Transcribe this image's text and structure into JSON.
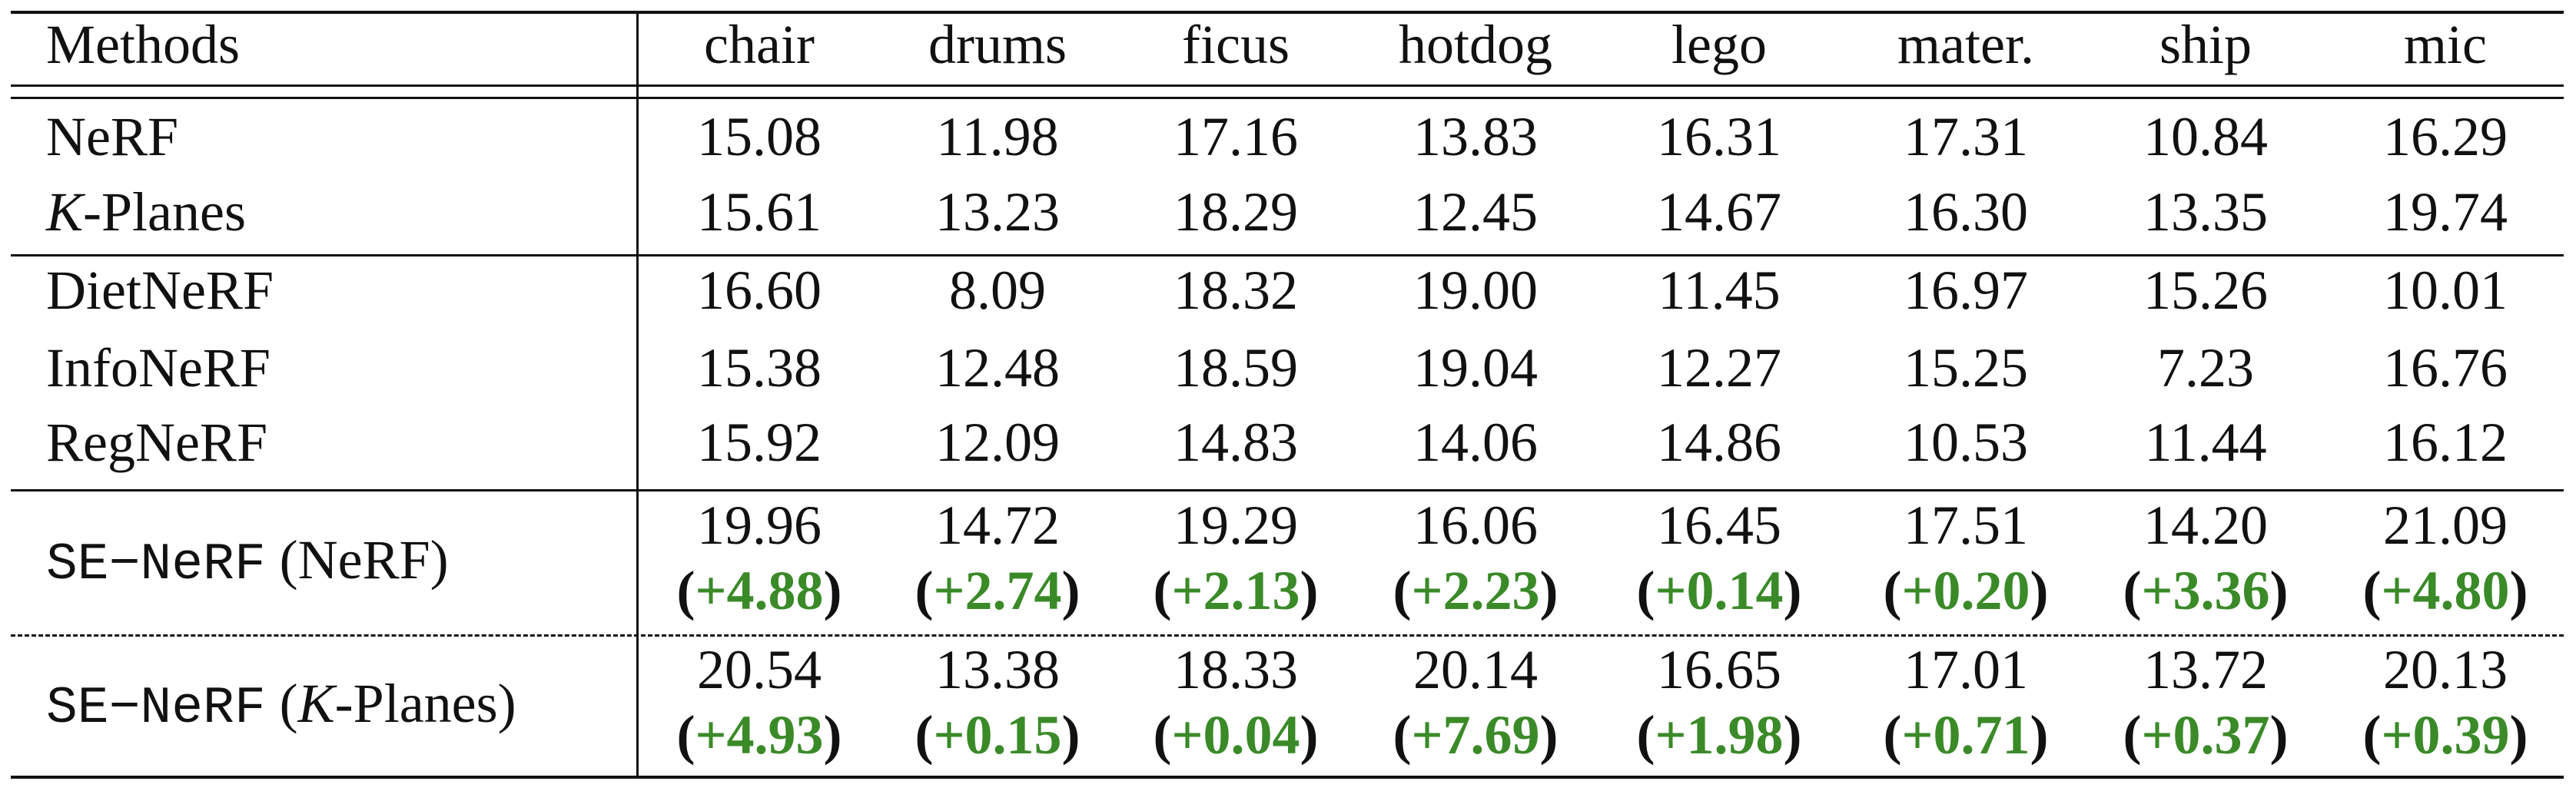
{
  "table": {
    "header": {
      "methods": "Methods",
      "columns": [
        "chair",
        "drums",
        "ficus",
        "hotdog",
        "lego",
        "mater.",
        "ship",
        "mic"
      ]
    },
    "rows": [
      {
        "italic_prefix": "",
        "name": "NeRF",
        "values": [
          "15.08",
          "11.98",
          "17.16",
          "13.83",
          "16.31",
          "17.31",
          "10.84",
          "16.29"
        ]
      },
      {
        "italic_prefix": "K",
        "name": "-Planes",
        "values": [
          "15.61",
          "13.23",
          "18.29",
          "12.45",
          "14.67",
          "16.30",
          "13.35",
          "19.74"
        ]
      },
      {
        "italic_prefix": "",
        "name": "DietNeRF",
        "values": [
          "16.60",
          "8.09",
          "18.32",
          "19.00",
          "11.45",
          "16.97",
          "15.26",
          "10.01"
        ]
      },
      {
        "italic_prefix": "",
        "name": "InfoNeRF",
        "values": [
          "15.38",
          "12.48",
          "18.59",
          "19.04",
          "12.27",
          "15.25",
          "7.23",
          "16.76"
        ]
      },
      {
        "italic_prefix": "",
        "name": "RegNeRF",
        "values": [
          "15.92",
          "12.09",
          "14.83",
          "14.06",
          "14.86",
          "10.53",
          "11.44",
          "16.12"
        ]
      }
    ],
    "se_rows": [
      {
        "mono": "SE−NeRF",
        "paren_open": " (",
        "italic_prefix": "",
        "base": "NeRF",
        "paren_close": ")",
        "values": [
          "19.96",
          "14.72",
          "19.29",
          "16.06",
          "16.45",
          "17.51",
          "14.20",
          "21.09"
        ],
        "deltas": [
          "+4.88",
          "+2.74",
          "+2.13",
          "+2.23",
          "+0.14",
          "+0.20",
          "+3.36",
          "+4.80"
        ]
      },
      {
        "mono": "SE−NeRF",
        "paren_open": " (",
        "italic_prefix": "K",
        "base": "-Planes",
        "paren_close": ")",
        "values": [
          "20.54",
          "13.38",
          "18.33",
          "20.14",
          "16.65",
          "17.01",
          "13.72",
          "20.13"
        ],
        "deltas": [
          "+4.93",
          "+0.15",
          "+0.04",
          "+7.69",
          "+1.98",
          "+0.71",
          "+0.37",
          "+0.39"
        ]
      }
    ],
    "delta_color": "#3a8a28"
  }
}
